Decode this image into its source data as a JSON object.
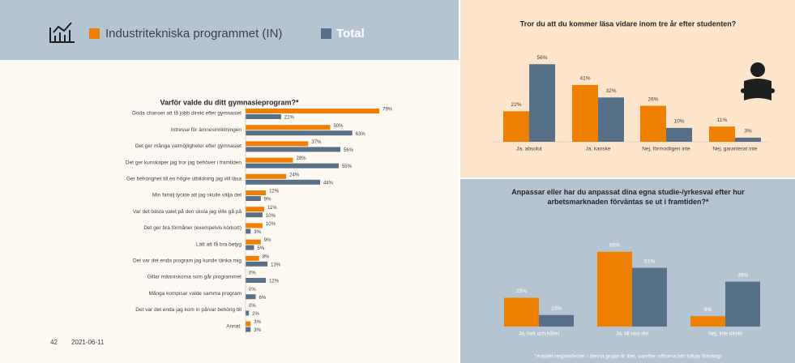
{
  "chart_data": [
    {
      "type": "barh",
      "title": "Varför valde du ditt gymnasieprogram?*",
      "categories": [
        "Goda chanser att få jobb direkt efter gymnasiet",
        "Intresse för ämnesinriktningen",
        "Det ger många valmöjligheter efter gymnasiet",
        "Det ger kunskaper jag tror jag behöver i framtiden",
        "Ger behörighet till en högre utbildning jag vill läsa",
        "Min familj tyckte att jag skulle välja det",
        "Var det bästa valet på den skola jag ville gå på",
        "Det ger bra förmåner (exempelvis körkort)",
        "Lätt att få bra betyg",
        "Det var det enda program jag kunde tänka mig",
        "Gillar människorna som går programmet",
        "Många kompisar valde samma program",
        "Det var det enda jag kom in på/var behörig till",
        "Annat:"
      ],
      "series": [
        {
          "name": "Industritekniska programmet (IN)",
          "color": "#ee7f00",
          "values": [
            79,
            50,
            37,
            28,
            24,
            12,
            11,
            10,
            9,
            8,
            0,
            0,
            0,
            3
          ],
          "value_labels": [
            "79%",
            "50%",
            "37%",
            "28%",
            "24%",
            "12%",
            "11%",
            "10%",
            "9%",
            "8%",
            "0%",
            "0%",
            "0%",
            "3%"
          ]
        },
        {
          "name": "Total",
          "color": "#587087",
          "values": [
            21,
            63,
            56,
            55,
            44,
            9,
            10,
            3,
            5,
            13,
            12,
            6,
            2,
            3
          ],
          "value_labels": [
            "21%",
            "63%",
            "56%",
            "55%",
            "44%",
            "9%",
            "10%",
            "3%",
            "5%",
            "13%",
            "12%",
            "6%",
            "2%",
            "3%"
          ]
        }
      ]
    },
    {
      "type": "bar",
      "title": "Tror du att du kommer läsa vidare inom tre år efter studenten?",
      "categories": [
        "Ja, absolut",
        "Ja, kanske",
        "Nej, förmodligen inte",
        "Nej, garanterat inte"
      ],
      "series": [
        {
          "color": "#ee7f00",
          "values": [
            22,
            41,
            26,
            11
          ],
          "value_labels": [
            "22%",
            "41%",
            "26%",
            "11%"
          ]
        },
        {
          "color": "#587087",
          "values": [
            56,
            32,
            10,
            3
          ],
          "value_labels": [
            "56%",
            "32%",
            "10%",
            "3%"
          ]
        }
      ]
    },
    {
      "type": "bar",
      "title": "Anpassar eller har du anpassat dina egna studie-/yrkesval efter hur arbetsmarknaden förväntas se ut i framtiden?*",
      "categories": [
        "Ja, helt och hållet",
        "Ja, till viss del",
        "Nej, inte direkt"
      ],
      "series": [
        {
          "color": "#ee7f00",
          "values": [
            25,
            65,
            9
          ],
          "value_labels": [
            "25%",
            "65%",
            "9%"
          ]
        },
        {
          "color": "#587087",
          "values": [
            10,
            51,
            39
          ],
          "value_labels": [
            "10%",
            "51%",
            "39%"
          ]
        }
      ],
      "footnote": "*Antalet respondenter i denna grupp är litet, varefter siffrorna bör tolkas försiktigt"
    }
  ],
  "footer": {
    "page": 42,
    "date": "2021-06-11"
  }
}
